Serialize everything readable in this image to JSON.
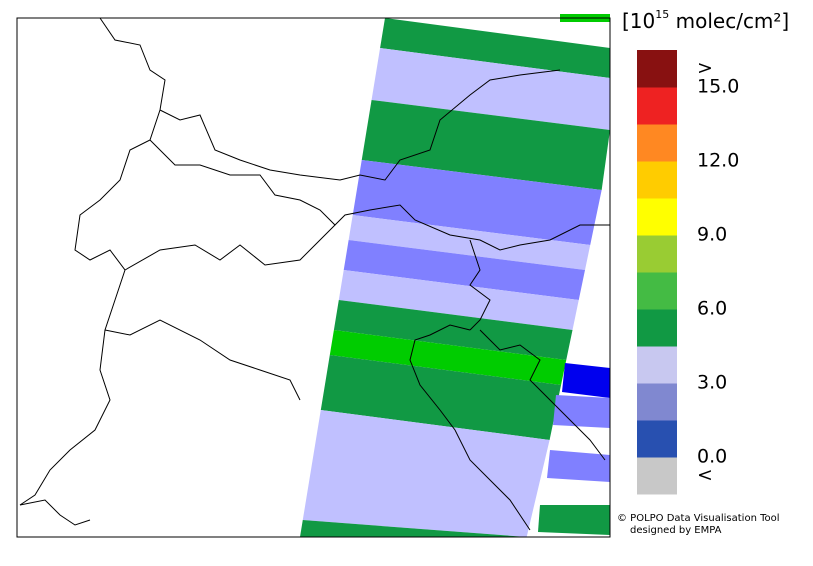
{
  "colorbar": {
    "title_prefix": "[10",
    "title_exponent": "15",
    "title_suffix": " molec/cm²]",
    "range": [
      -1.5,
      16.5
    ],
    "colors": [
      "#c8c8c8",
      "#2850b0",
      "#8088d0",
      "#c8c8f0",
      "#119944",
      "#44bb44",
      "#99cc33",
      "#ffff00",
      "#ffcc00",
      "#ff8822",
      "#ee2222",
      "#881111"
    ],
    "ticks": [
      {
        "value": 0,
        "label": "0.0"
      },
      {
        "value": 3,
        "label": "3.0"
      },
      {
        "value": 6,
        "label": "6.0"
      },
      {
        "value": 9,
        "label": "9.0"
      },
      {
        "value": 12,
        "label": "12.0"
      },
      {
        "value": 15,
        "label": "15.0"
      }
    ],
    "over_label": ">",
    "under_label": "<"
  },
  "credit": [
    "© POLPO Data Visualisation Tool",
    "designed by EMPA"
  ]
}
